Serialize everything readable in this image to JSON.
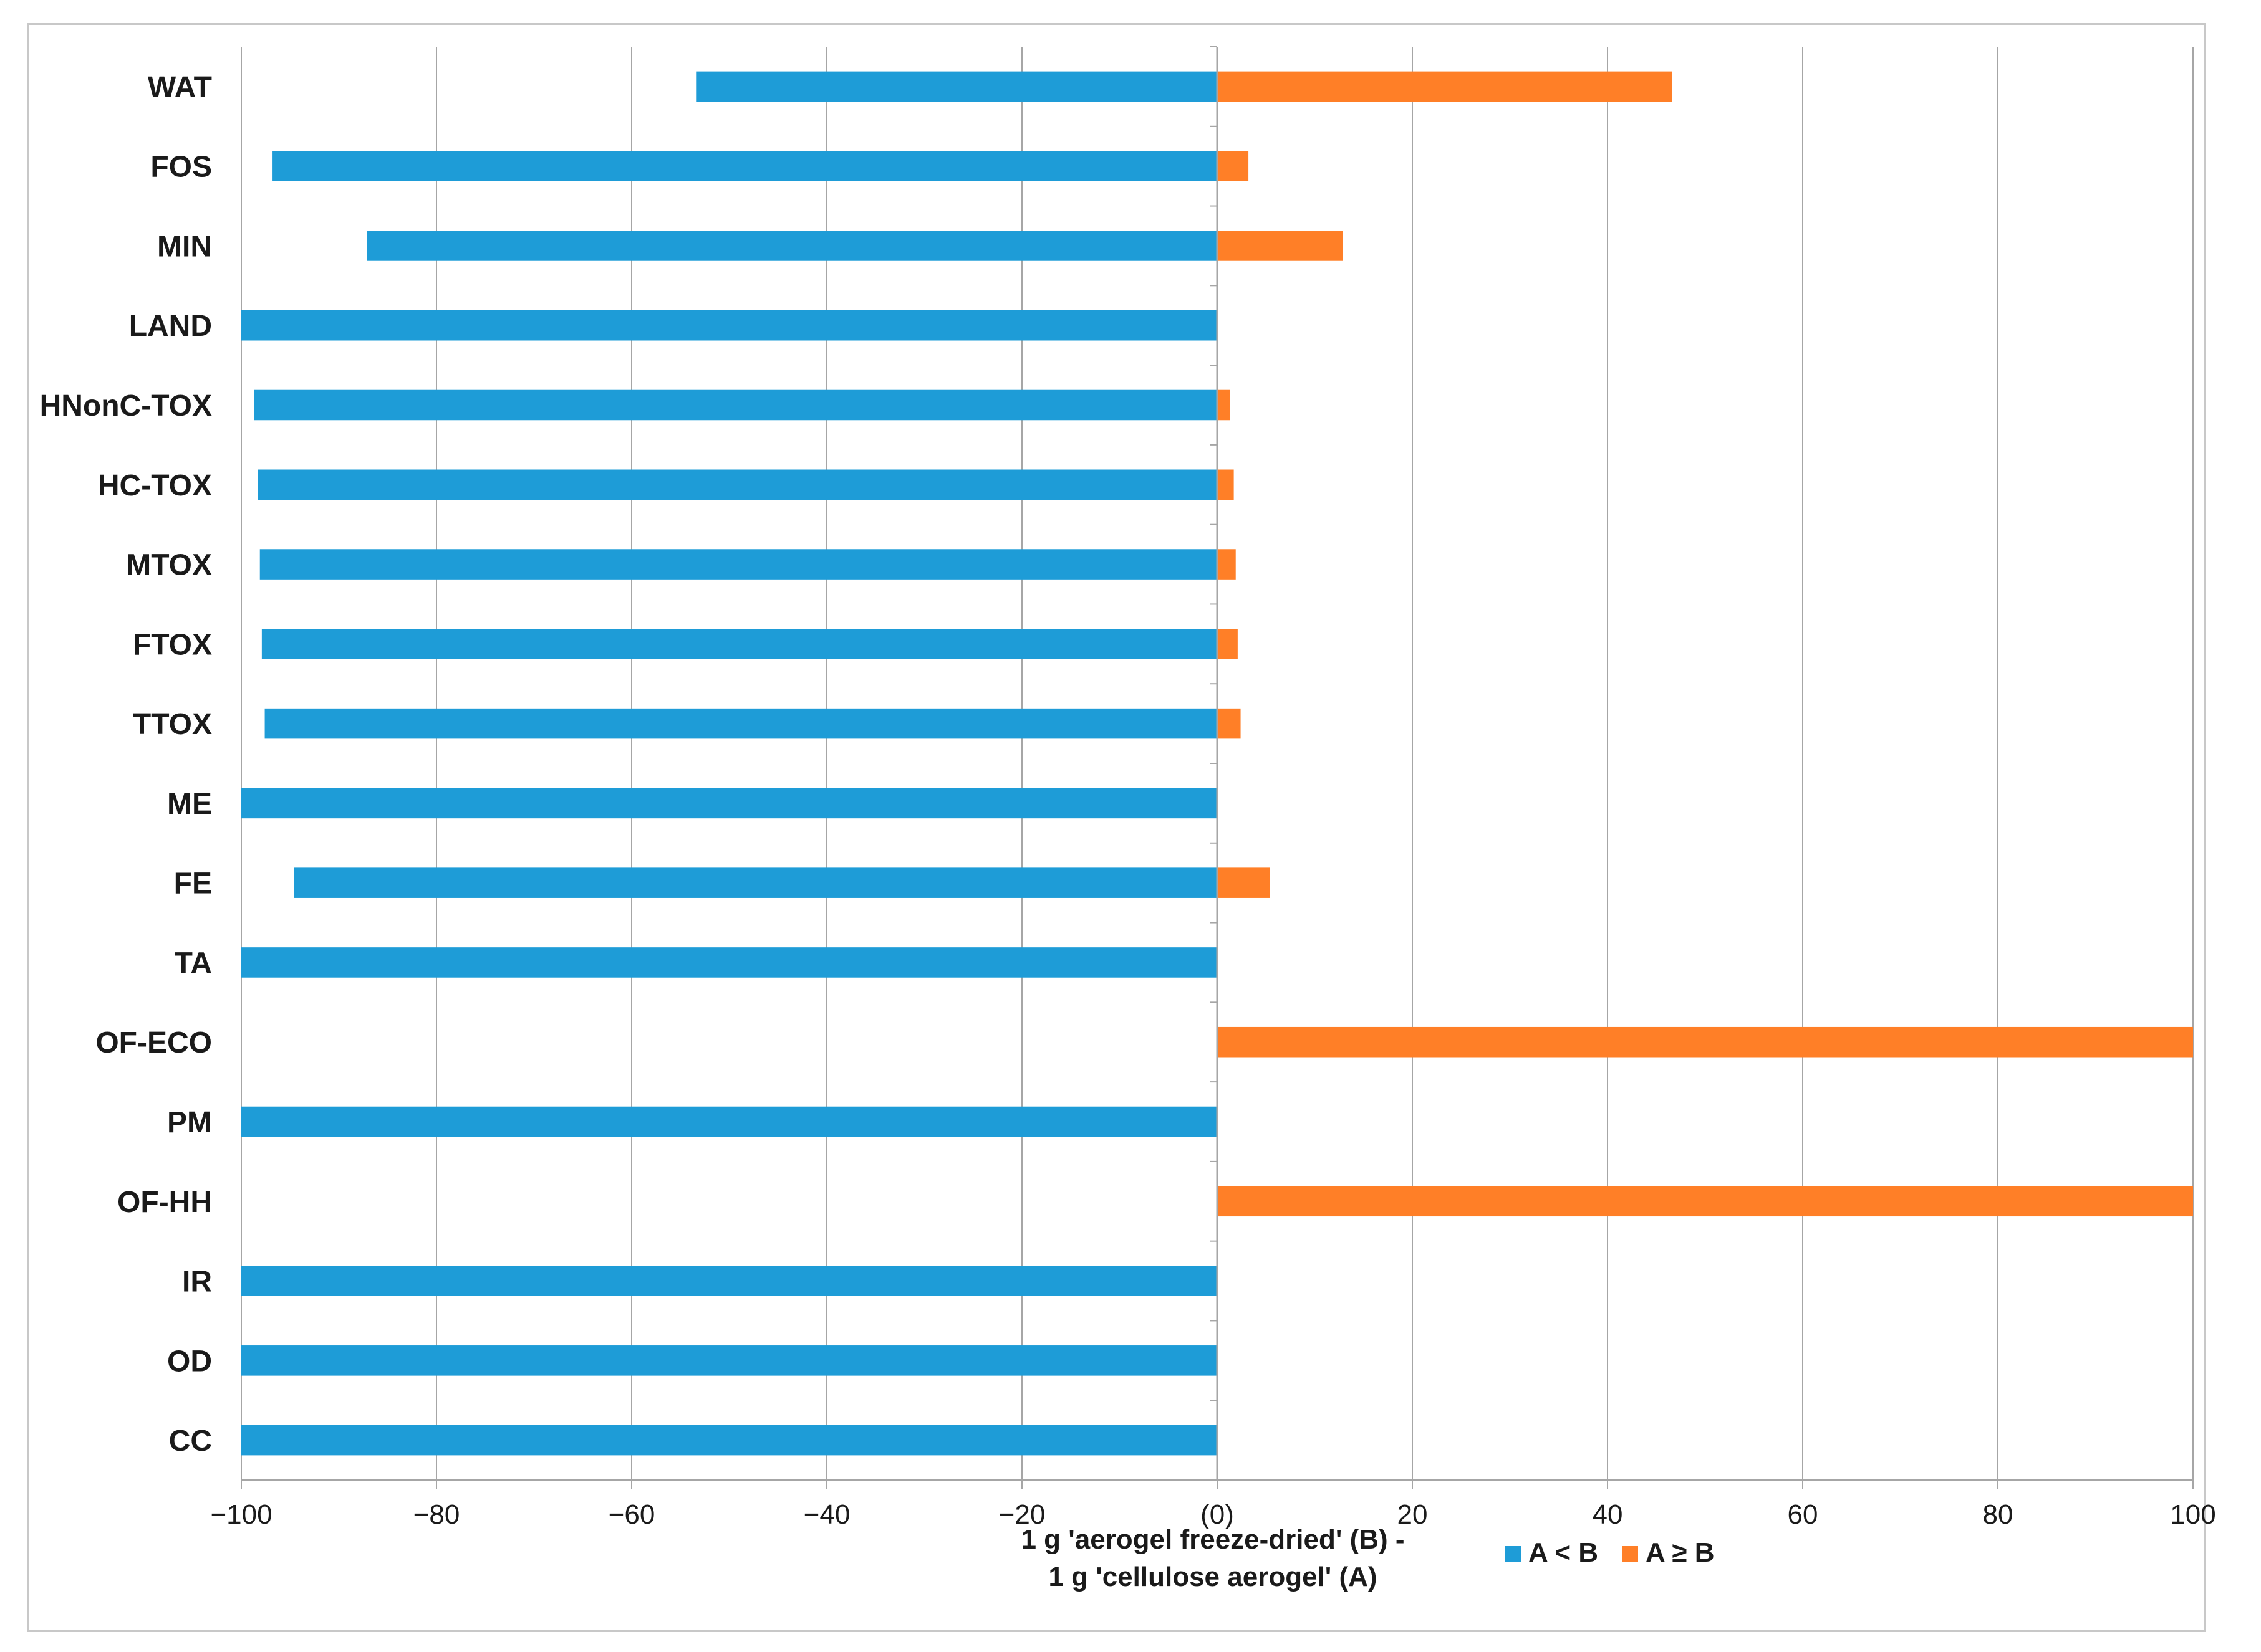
{
  "chart_data": {
    "type": "bar",
    "orientation": "horizontal",
    "stacked": true,
    "categories": [
      "WAT",
      "FOS",
      "MIN",
      "LAND",
      "HNonC-TOX",
      "HC-TOX",
      "MTOX",
      "FTOX",
      "TTOX",
      "ME",
      "FE",
      "TA",
      "OF-ECO",
      "PM",
      "OF-HH",
      "IR",
      "OD",
      "CC"
    ],
    "series": [
      {
        "name": "A < B",
        "color": "#1e9cd7",
        "values": [
          -53.4,
          -96.8,
          -87.1,
          -100,
          -98.7,
          -98.3,
          -98.1,
          -97.9,
          -97.6,
          -100,
          -94.6,
          -100,
          0,
          -100,
          0,
          -100,
          -100,
          -100
        ]
      },
      {
        "name": "A ≥ B",
        "color": "#ff7f27",
        "values": [
          46.6,
          3.2,
          12.9,
          0,
          1.3,
          1.7,
          1.9,
          2.1,
          2.4,
          0,
          5.4,
          0,
          100,
          0,
          100,
          0,
          0,
          0
        ]
      }
    ],
    "x_ticks": [
      "−100",
      "−80",
      "−60",
      "−40",
      "−20",
      "(0)",
      "20",
      "40",
      "60",
      "80",
      "100"
    ],
    "x_tick_values": [
      -100,
      -80,
      -60,
      -40,
      -20,
      0,
      20,
      40,
      60,
      80,
      100
    ],
    "xlim": [
      -100,
      100
    ],
    "xlabel_line1": "1 g 'aerogel freeze-dried' (B) -",
    "xlabel_line2": "1 g 'cellulose aerogel' (A)",
    "title": "",
    "ylabel": "",
    "grid": true,
    "legend_position": "bottom"
  }
}
